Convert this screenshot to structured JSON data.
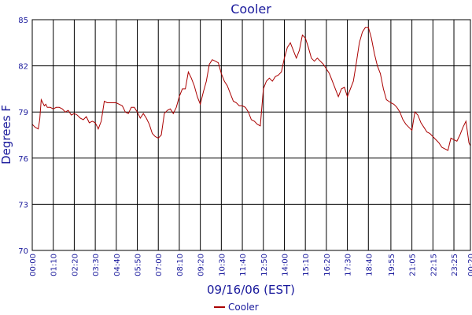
{
  "chart_data": {
    "type": "line",
    "title": "Cooler",
    "xlabel": "09/16/06 (EST)",
    "ylabel": "Degrees F",
    "ylim": [
      70,
      85
    ],
    "y_ticks": [
      "70",
      "73",
      "76",
      "79",
      "82",
      "85"
    ],
    "x_tick_labels": [
      "00:00",
      "01:10",
      "02:20",
      "03:30",
      "04:40",
      "05:50",
      "07:00",
      "08:10",
      "09:20",
      "10:30",
      "11:40",
      "12:50",
      "14:00",
      "15:10",
      "16:20",
      "17:30",
      "18:40",
      "19:55",
      "21:05",
      "22:15",
      "23:25",
      "00:20"
    ],
    "grid": true,
    "legend_position": "bottom",
    "colors": {
      "series": "#aa0000",
      "axis": "#1a1a9c",
      "grid": "#000000"
    },
    "series": [
      {
        "name": "Cooler",
        "x": [
          "00:00",
          "00:10",
          "00:20",
          "00:25",
          "00:30",
          "00:35",
          "00:40",
          "00:45",
          "00:50",
          "01:00",
          "01:10",
          "01:20",
          "01:30",
          "01:40",
          "01:50",
          "02:00",
          "02:10",
          "02:20",
          "02:30",
          "02:40",
          "02:50",
          "03:00",
          "03:10",
          "03:20",
          "03:30",
          "03:40",
          "03:50",
          "04:00",
          "04:10",
          "04:20",
          "04:40",
          "04:50",
          "05:00",
          "05:10",
          "05:20",
          "05:30",
          "05:40",
          "05:50",
          "06:00",
          "06:10",
          "06:20",
          "06:30",
          "06:40",
          "06:50",
          "07:00",
          "07:10",
          "07:20",
          "07:30",
          "07:40",
          "07:50",
          "08:00",
          "08:10",
          "08:20",
          "08:30",
          "08:40",
          "08:50",
          "09:00",
          "09:10",
          "09:20",
          "09:30",
          "09:40",
          "09:50",
          "10:00",
          "10:10",
          "10:20",
          "10:30",
          "10:40",
          "10:50",
          "11:00",
          "11:10",
          "11:20",
          "11:30",
          "11:40",
          "11:50",
          "12:00",
          "12:10",
          "12:20",
          "12:30",
          "12:40",
          "12:50",
          "13:00",
          "13:10",
          "13:20",
          "13:30",
          "13:40",
          "13:50",
          "14:00",
          "14:10",
          "14:20",
          "14:30",
          "14:40",
          "14:50",
          "15:00",
          "15:10",
          "15:20",
          "15:30",
          "15:40",
          "15:50",
          "16:00",
          "16:10",
          "16:20",
          "16:30",
          "16:40",
          "16:50",
          "17:00",
          "17:10",
          "17:20",
          "17:30",
          "17:40",
          "17:50",
          "18:00",
          "18:10",
          "18:20",
          "18:30",
          "18:40",
          "18:50",
          "19:00",
          "19:10",
          "19:20",
          "19:30",
          "19:40",
          "19:55",
          "20:05",
          "20:15",
          "20:25",
          "20:35",
          "20:45",
          "20:55",
          "21:05",
          "21:15",
          "21:25",
          "21:35",
          "21:45",
          "21:55",
          "22:05",
          "22:15",
          "22:25",
          "22:35",
          "22:45",
          "22:55",
          "23:05",
          "23:15",
          "23:25",
          "23:35",
          "23:45",
          "23:55",
          "00:05",
          "00:15",
          "00:20"
        ],
        "values": [
          78.2,
          78.0,
          77.9,
          78.5,
          79.8,
          79.6,
          79.4,
          79.5,
          79.3,
          79.3,
          79.2,
          79.3,
          79.3,
          79.2,
          79.0,
          79.1,
          78.8,
          78.9,
          78.8,
          78.6,
          78.5,
          78.7,
          78.3,
          78.4,
          78.3,
          77.9,
          78.4,
          79.7,
          79.6,
          79.6,
          79.6,
          79.5,
          79.4,
          79.0,
          78.9,
          79.3,
          79.3,
          79.0,
          78.6,
          78.9,
          78.6,
          78.2,
          77.6,
          77.4,
          77.3,
          77.5,
          78.9,
          79.1,
          79.2,
          78.9,
          79.3,
          80.0,
          80.5,
          80.5,
          81.6,
          81.2,
          80.7,
          80.0,
          79.5,
          80.3,
          81.0,
          82.1,
          82.4,
          82.3,
          82.2,
          81.5,
          81.0,
          80.7,
          80.2,
          79.7,
          79.6,
          79.4,
          79.4,
          79.3,
          79.0,
          78.5,
          78.4,
          78.2,
          78.1,
          80.5,
          81.0,
          81.2,
          81.0,
          81.3,
          81.4,
          81.6,
          82.5,
          83.2,
          83.5,
          83.0,
          82.5,
          83.0,
          84.0,
          83.8,
          83.2,
          82.5,
          82.3,
          82.5,
          82.3,
          82.1,
          81.8,
          81.5,
          81.0,
          80.5,
          80.0,
          80.5,
          80.6,
          80.0,
          80.5,
          81.0,
          82.2,
          83.5,
          84.2,
          84.5,
          84.5,
          83.8,
          82.8,
          82.0,
          81.5,
          80.5,
          79.8,
          79.6,
          79.5,
          79.3,
          79.0,
          78.5,
          78.2,
          78.0,
          77.8,
          79.0,
          78.8,
          78.3,
          78.0,
          77.7,
          77.6,
          77.4,
          77.2,
          77.0,
          76.7,
          76.6,
          76.5,
          77.3,
          77.2,
          77.1,
          77.5,
          78.0,
          78.4,
          77.0,
          76.8
        ]
      }
    ]
  }
}
